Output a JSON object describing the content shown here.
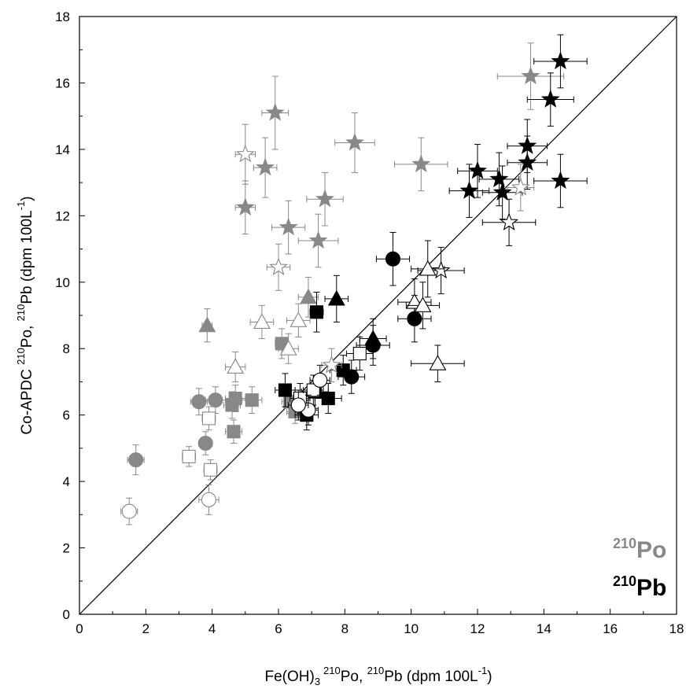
{
  "chart_data": {
    "type": "scatter",
    "title": "",
    "xlabel": {
      "pre": "Fe(OH)",
      "sub": "3",
      "iso1": "210",
      "mid": "Po, ",
      "iso2": "210",
      "post": "Pb (dpm 100L",
      "unitexp": "-1",
      "close": ")"
    },
    "ylabel": {
      "pre": "Co-APDC ",
      "iso1": "210",
      "mid": "Po, ",
      "iso2": "210",
      "post": "Pb (dpm 100L",
      "unitexp": "-1",
      "close": ")"
    },
    "xlim": [
      0,
      18
    ],
    "ylim": [
      0,
      18
    ],
    "x_ticks": [
      "0",
      "2",
      "4",
      "6",
      "8",
      "10",
      "12",
      "14",
      "16",
      "18"
    ],
    "y_ticks": [
      "0",
      "2",
      "4",
      "6",
      "8",
      "10",
      "12",
      "14",
      "16",
      "18"
    ],
    "x_tick_values": [
      0,
      2,
      4,
      6,
      8,
      10,
      12,
      14,
      16,
      18
    ],
    "y_tick_values": [
      0,
      2,
      4,
      6,
      8,
      10,
      12,
      14,
      16,
      18
    ],
    "reference_line": {
      "type": "1:1",
      "from": [
        0,
        0
      ],
      "to": [
        18,
        18
      ]
    },
    "legend": {
      "placement": "bottom-right",
      "entries": [
        {
          "iso": "210",
          "label": "Po",
          "color": "#888888"
        },
        {
          "iso": "210",
          "label": "Pb",
          "color": "#000000"
        }
      ]
    },
    "colors": {
      "po": "#888888",
      "pb": "#000000",
      "open_fill": "#ffffff"
    },
    "series": [
      {
        "isotope": "Po",
        "marker": "star",
        "fill": "filled",
        "points": [
          {
            "x": 5.9,
            "y": 15.1,
            "xerr": 0.4,
            "yerr": 1.1
          },
          {
            "x": 5.6,
            "y": 13.45,
            "xerr": 0.35,
            "yerr": 0.9
          },
          {
            "x": 5.0,
            "y": 12.25,
            "xerr": 0.3,
            "yerr": 0.8
          },
          {
            "x": 6.3,
            "y": 11.65,
            "xerr": 0.5,
            "yerr": 0.8
          },
          {
            "x": 7.2,
            "y": 11.25,
            "xerr": 0.6,
            "yerr": 0.8
          },
          {
            "x": 7.4,
            "y": 12.5,
            "xerr": 0.55,
            "yerr": 0.8
          },
          {
            "x": 8.3,
            "y": 14.2,
            "xerr": 0.6,
            "yerr": 0.9
          },
          {
            "x": 10.3,
            "y": 13.55,
            "xerr": 0.8,
            "yerr": 0.8
          },
          {
            "x": 13.6,
            "y": 16.2,
            "xerr": 1.0,
            "yerr": 1.0
          }
        ]
      },
      {
        "isotope": "Po",
        "marker": "star",
        "fill": "open",
        "points": [
          {
            "x": 5.0,
            "y": 13.85,
            "xerr": 0.3,
            "yerr": 0.9
          },
          {
            "x": 6.0,
            "y": 10.45,
            "xerr": 0.35,
            "yerr": 0.7
          },
          {
            "x": 13.3,
            "y": 12.85,
            "xerr": 0.4,
            "yerr": 0.7
          },
          {
            "x": 7.6,
            "y": 7.5,
            "xerr": 0.3,
            "yerr": 0.5
          }
        ]
      },
      {
        "isotope": "Po",
        "marker": "triangle",
        "fill": "filled",
        "points": [
          {
            "x": 3.85,
            "y": 8.7,
            "xerr": 0.15,
            "yerr": 0.5
          },
          {
            "x": 6.9,
            "y": 9.55,
            "xerr": 0.3,
            "yerr": 0.6
          }
        ]
      },
      {
        "isotope": "Po",
        "marker": "triangle",
        "fill": "open",
        "points": [
          {
            "x": 4.7,
            "y": 7.45,
            "xerr": 0.3,
            "yerr": 0.45
          },
          {
            "x": 5.5,
            "y": 8.8,
            "xerr": 0.35,
            "yerr": 0.5
          },
          {
            "x": 6.6,
            "y": 8.85,
            "xerr": 0.35,
            "yerr": 0.5
          },
          {
            "x": 6.3,
            "y": 8.0,
            "xerr": 0.3,
            "yerr": 0.45
          }
        ]
      },
      {
        "isotope": "Po",
        "marker": "square",
        "fill": "filled",
        "points": [
          {
            "x": 6.1,
            "y": 8.15,
            "xerr": 0.2,
            "yerr": 0.45
          },
          {
            "x": 4.6,
            "y": 6.3,
            "xerr": 0.25,
            "yerr": 0.4
          },
          {
            "x": 4.7,
            "y": 6.5,
            "xerr": 0.3,
            "yerr": 0.4
          },
          {
            "x": 5.2,
            "y": 6.45,
            "xerr": 0.3,
            "yerr": 0.4
          },
          {
            "x": 4.65,
            "y": 5.5,
            "xerr": 0.25,
            "yerr": 0.35
          },
          {
            "x": 6.5,
            "y": 6.1,
            "xerr": 0.25,
            "yerr": 0.35
          },
          {
            "x": 6.35,
            "y": 6.4,
            "xerr": 0.25,
            "yerr": 0.35
          }
        ]
      },
      {
        "isotope": "Po",
        "marker": "square",
        "fill": "open",
        "points": [
          {
            "x": 3.9,
            "y": 5.9,
            "xerr": 0.2,
            "yerr": 0.35
          },
          {
            "x": 3.3,
            "y": 4.75,
            "xerr": 0.2,
            "yerr": 0.3
          },
          {
            "x": 3.95,
            "y": 4.35,
            "xerr": 0.2,
            "yerr": 0.3
          }
        ]
      },
      {
        "isotope": "Po",
        "marker": "circle",
        "fill": "filled",
        "points": [
          {
            "x": 3.6,
            "y": 6.4,
            "xerr": 0.25,
            "yerr": 0.4
          },
          {
            "x": 4.1,
            "y": 6.45,
            "xerr": 0.3,
            "yerr": 0.4
          },
          {
            "x": 3.8,
            "y": 5.15,
            "xerr": 0.2,
            "yerr": 0.35
          },
          {
            "x": 1.7,
            "y": 4.65,
            "xerr": 0.25,
            "yerr": 0.45
          }
        ]
      },
      {
        "isotope": "Po",
        "marker": "circle",
        "fill": "open",
        "points": [
          {
            "x": 1.5,
            "y": 3.1,
            "xerr": 0.25,
            "yerr": 0.4
          },
          {
            "x": 3.9,
            "y": 3.45,
            "xerr": 0.3,
            "yerr": 0.45
          }
        ]
      },
      {
        "isotope": "Pb",
        "marker": "star",
        "fill": "filled",
        "points": [
          {
            "x": 14.5,
            "y": 16.65,
            "xerr": 0.8,
            "yerr": 0.8
          },
          {
            "x": 14.2,
            "y": 15.5,
            "xerr": 0.7,
            "yerr": 0.8
          },
          {
            "x": 13.5,
            "y": 14.1,
            "xerr": 0.6,
            "yerr": 0.8
          },
          {
            "x": 13.5,
            "y": 13.6,
            "xerr": 0.6,
            "yerr": 0.8
          },
          {
            "x": 12.0,
            "y": 13.35,
            "xerr": 0.6,
            "yerr": 0.8
          },
          {
            "x": 12.65,
            "y": 13.1,
            "xerr": 0.6,
            "yerr": 0.8
          },
          {
            "x": 12.75,
            "y": 12.7,
            "xerr": 0.6,
            "yerr": 0.8
          },
          {
            "x": 11.75,
            "y": 12.75,
            "xerr": 0.6,
            "yerr": 0.8
          },
          {
            "x": 14.5,
            "y": 13.05,
            "xerr": 0.8,
            "yerr": 0.8
          }
        ]
      },
      {
        "isotope": "Pb",
        "marker": "star",
        "fill": "open",
        "points": [
          {
            "x": 12.95,
            "y": 11.8,
            "xerr": 0.8,
            "yerr": 0.7
          },
          {
            "x": 10.9,
            "y": 10.35,
            "xerr": 0.7,
            "yerr": 0.7
          }
        ]
      },
      {
        "isotope": "Pb",
        "marker": "triangle",
        "fill": "filled",
        "points": [
          {
            "x": 7.75,
            "y": 9.5,
            "xerr": 0.35,
            "yerr": 0.7
          },
          {
            "x": 8.85,
            "y": 8.3,
            "xerr": 0.4,
            "yerr": 0.6
          }
        ]
      },
      {
        "isotope": "Pb",
        "marker": "triangle",
        "fill": "open",
        "points": [
          {
            "x": 10.5,
            "y": 10.4,
            "xerr": 0.5,
            "yerr": 0.85
          },
          {
            "x": 10.1,
            "y": 9.4,
            "xerr": 0.5,
            "yerr": 0.7
          },
          {
            "x": 10.35,
            "y": 9.3,
            "xerr": 0.5,
            "yerr": 0.7
          },
          {
            "x": 10.8,
            "y": 7.55,
            "xerr": 0.8,
            "yerr": 0.55
          }
        ]
      },
      {
        "isotope": "Pb",
        "marker": "square",
        "fill": "filled",
        "points": [
          {
            "x": 7.15,
            "y": 9.1,
            "xerr": 0.2,
            "yerr": 0.6
          },
          {
            "x": 6.2,
            "y": 6.75,
            "xerr": 0.3,
            "yerr": 0.5
          },
          {
            "x": 7.1,
            "y": 6.7,
            "xerr": 0.4,
            "yerr": 0.5
          },
          {
            "x": 7.5,
            "y": 6.5,
            "xerr": 0.4,
            "yerr": 0.45
          },
          {
            "x": 6.85,
            "y": 6.0,
            "xerr": 0.35,
            "yerr": 0.45
          },
          {
            "x": 7.95,
            "y": 7.35,
            "xerr": 0.4,
            "yerr": 0.45
          }
        ]
      },
      {
        "isotope": "Pb",
        "marker": "square",
        "fill": "open",
        "points": [
          {
            "x": 8.45,
            "y": 7.85,
            "xerr": 0.4,
            "yerr": 0.5
          },
          {
            "x": 6.65,
            "y": 6.5,
            "xerr": 0.3,
            "yerr": 0.45
          },
          {
            "x": 7.05,
            "y": 6.75,
            "xerr": 0.3,
            "yerr": 0.45
          }
        ]
      },
      {
        "isotope": "Pb",
        "marker": "circle",
        "fill": "filled",
        "points": [
          {
            "x": 9.45,
            "y": 10.7,
            "xerr": 0.5,
            "yerr": 0.8
          },
          {
            "x": 10.1,
            "y": 8.9,
            "xerr": 0.5,
            "yerr": 0.7
          },
          {
            "x": 8.85,
            "y": 8.1,
            "xerr": 0.5,
            "yerr": 0.6
          },
          {
            "x": 8.2,
            "y": 7.15,
            "xerr": 0.4,
            "yerr": 0.5
          }
        ]
      },
      {
        "isotope": "Pb",
        "marker": "circle",
        "fill": "open",
        "points": [
          {
            "x": 7.25,
            "y": 7.05,
            "xerr": 0.3,
            "yerr": 0.45
          },
          {
            "x": 6.9,
            "y": 6.15,
            "xerr": 0.3,
            "yerr": 0.45
          },
          {
            "x": 6.6,
            "y": 6.3,
            "xerr": 0.3,
            "yerr": 0.45
          }
        ]
      }
    ]
  }
}
